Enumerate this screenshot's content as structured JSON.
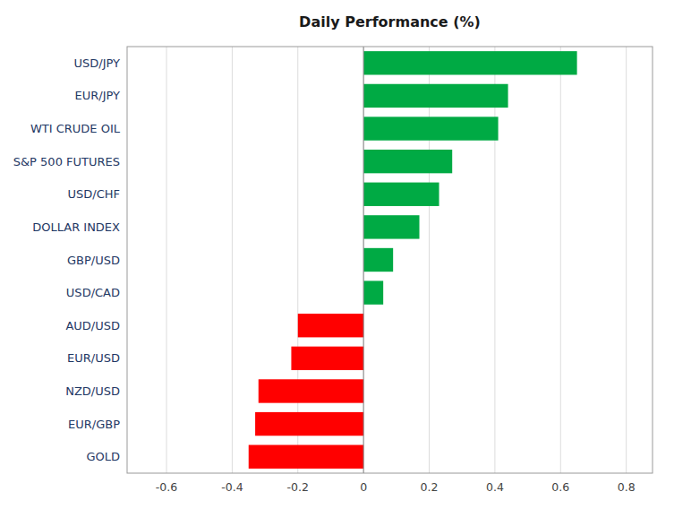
{
  "chart_data": {
    "type": "bar",
    "orientation": "horizontal",
    "title": "Daily Performance (%)",
    "categories": [
      "USD/JPY",
      "EUR/JPY",
      "WTI CRUDE OIL",
      "S&P 500 FUTURES",
      "USD/CHF",
      "DOLLAR INDEX",
      "GBP/USD",
      "USD/CAD",
      "AUD/USD",
      "EUR/USD",
      "NZD/USD",
      "EUR/GBP",
      "GOLD"
    ],
    "values": [
      0.65,
      0.44,
      0.41,
      0.27,
      0.23,
      0.17,
      0.09,
      0.06,
      -0.2,
      -0.22,
      -0.32,
      -0.33,
      -0.35
    ],
    "colors": [
      "#00AA44",
      "#00AA44",
      "#00AA44",
      "#00AA44",
      "#00AA44",
      "#00AA44",
      "#00AA44",
      "#00AA44",
      "#FF0000",
      "#FF0000",
      "#FF0000",
      "#FF0000",
      "#FF0000"
    ],
    "xlim": [
      -0.72,
      0.88
    ],
    "xticks": [
      -0.6,
      -0.4,
      -0.2,
      0,
      0.2,
      0.4,
      0.6,
      0.8
    ],
    "grid": true
  }
}
